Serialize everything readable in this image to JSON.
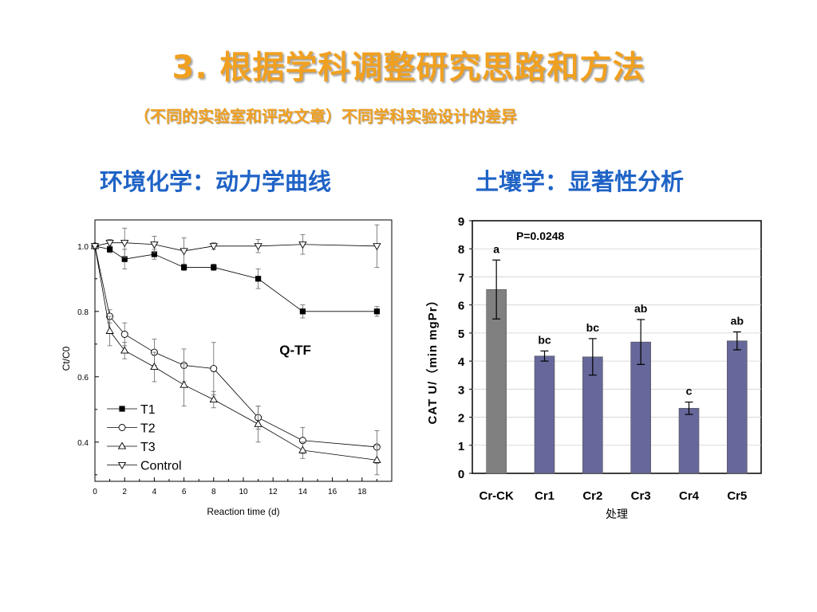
{
  "slide": {
    "title": "3. 根据学科调整研究思路和方法",
    "subtitle": "（不同的实验室和评改文章）不同学科实验设计的差异",
    "left_heading": "环境化学：动力学曲线",
    "right_heading": "土壤学：显著性分析"
  },
  "colors": {
    "title": "#f0a020",
    "heading": "#1f63c6",
    "bar_ck": "#808080",
    "bar_treat": "#66679a"
  },
  "chart_data": [
    {
      "type": "line",
      "xlabel": "Reaction time (d)",
      "ylabel": "Ct/C0",
      "xlim": [
        0,
        20
      ],
      "ylim": [
        0.28,
        1.08
      ],
      "xticks": [
        "0",
        "2",
        "4",
        "6",
        "8",
        "10",
        "12",
        "14",
        "16",
        "18"
      ],
      "yticks": [
        "0.4",
        "0.6",
        "0.8",
        "1.0"
      ],
      "annotation": "Q-TF",
      "legend_position": "lower-left",
      "series": [
        {
          "name": "T1",
          "marker": "square-filled",
          "x": [
            0,
            1,
            2,
            4,
            6,
            8,
            11,
            14,
            19
          ],
          "y": [
            1.0,
            0.99,
            0.96,
            0.975,
            0.935,
            0.935,
            0.9,
            0.8,
            0.8
          ],
          "err": [
            0,
            0.01,
            0.03,
            0.015,
            0.01,
            0.01,
            0.03,
            0.02,
            0.015
          ]
        },
        {
          "name": "T2",
          "marker": "circle-open",
          "x": [
            0,
            1,
            2,
            4,
            6,
            8,
            11,
            14,
            19
          ],
          "y": [
            1.0,
            0.785,
            0.73,
            0.675,
            0.635,
            0.625,
            0.475,
            0.405,
            0.385
          ],
          "err": [
            0,
            0.02,
            0.035,
            0.04,
            0.05,
            0.08,
            0.035,
            0.04,
            0.05
          ]
        },
        {
          "name": "T3",
          "marker": "triangle-up-open",
          "x": [
            0,
            1,
            2,
            4,
            6,
            8,
            11,
            14,
            19
          ],
          "y": [
            1.0,
            0.74,
            0.68,
            0.63,
            0.575,
            0.53,
            0.455,
            0.375,
            0.345
          ],
          "err": [
            0,
            0.045,
            0.025,
            0.045,
            0.065,
            0.025,
            0.055,
            0.025,
            0.045
          ]
        },
        {
          "name": "Control",
          "marker": "triangle-down-open",
          "x": [
            0,
            1,
            2,
            4,
            6,
            8,
            11,
            14,
            19
          ],
          "y": [
            1.0,
            1.01,
            1.01,
            1.005,
            0.985,
            1.0,
            1.0,
            1.005,
            1.0
          ],
          "err": [
            0,
            0.01,
            0.045,
            0.025,
            0.04,
            0.01,
            0.02,
            0.03,
            0.065
          ]
        }
      ]
    },
    {
      "type": "bar",
      "categories": [
        "Cr-CK",
        "Cr1",
        "Cr2",
        "Cr3",
        "Cr4",
        "Cr5"
      ],
      "values": [
        6.55,
        4.18,
        4.15,
        4.68,
        2.32,
        4.72
      ],
      "errors": [
        1.05,
        0.18,
        0.65,
        0.8,
        0.22,
        0.32
      ],
      "labels": [
        "a",
        "bc",
        "bc",
        "ab",
        "c",
        "ab"
      ],
      "annotation": "P=0.0248",
      "xlabel": "处理",
      "ylabel": "CAT U/（min mgPr）",
      "ylim": [
        0,
        9
      ],
      "yticks": [
        "0",
        "1",
        "2",
        "3",
        "4",
        "5",
        "6",
        "7",
        "8",
        "9"
      ],
      "grid": true
    }
  ]
}
